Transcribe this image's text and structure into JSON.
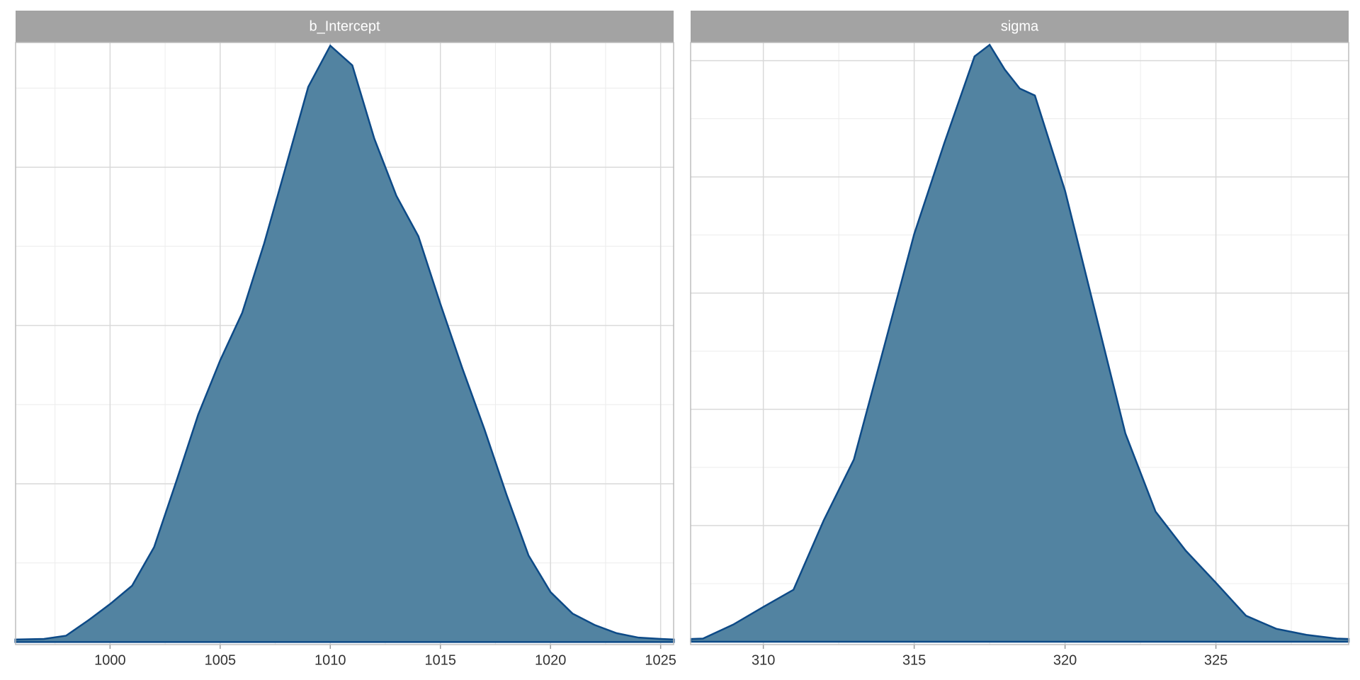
{
  "chart_data": [
    {
      "type": "area",
      "title": "b_Intercept",
      "x": [
        995.7,
        997,
        998,
        999,
        1000,
        1001,
        1002,
        1003,
        1004,
        1005,
        1006,
        1007,
        1008,
        1009,
        1010,
        1011,
        1012,
        1013,
        1014,
        1015,
        1016,
        1017,
        1018,
        1019,
        1020,
        1021,
        1022,
        1023,
        1024,
        1025,
        1025.6
      ],
      "y": [
        0.0004,
        0.0005,
        0.001,
        0.0034,
        0.006,
        0.0089,
        0.015,
        0.0253,
        0.0359,
        0.0445,
        0.052,
        0.063,
        0.0753,
        0.0877,
        0.0942,
        0.0911,
        0.0795,
        0.0705,
        0.0641,
        0.0534,
        0.0432,
        0.0336,
        0.0233,
        0.0137,
        0.0079,
        0.0045,
        0.0027,
        0.0014,
        0.0007,
        0.0005,
        0.0004
      ],
      "xlim": [
        995.71,
        1025.59
      ],
      "xticks": [
        1000,
        1005,
        1010,
        1015,
        1020,
        1025
      ],
      "xminor_ticks": [
        997.5,
        1002.5,
        1007.5,
        1012.5,
        1017.5,
        1022.5
      ],
      "ylim": [
        -0.0004,
        0.0947
      ],
      "yticks": [
        0,
        0.025,
        0.05,
        0.075
      ],
      "yminor_ticks": [
        0.0125,
        0.0375,
        0.0625,
        0.0875
      ],
      "color": "#5283a1",
      "line_color": "#0d4a87",
      "grid": true
    },
    {
      "type": "area",
      "title": "sigma",
      "x": [
        307.6,
        308,
        309,
        310,
        311,
        312,
        313,
        314,
        315,
        316,
        317,
        317.5,
        318,
        318.5,
        319,
        320,
        321,
        322,
        323,
        324,
        325,
        326,
        327,
        328,
        329,
        329.4
      ],
      "y": [
        0.0006,
        0.0007,
        0.0037,
        0.0075,
        0.0112,
        0.0261,
        0.0392,
        0.0634,
        0.0877,
        0.1073,
        0.1259,
        0.1284,
        0.1231,
        0.119,
        0.1175,
        0.097,
        0.0709,
        0.0448,
        0.028,
        0.0196,
        0.0127,
        0.0056,
        0.0028,
        0.0015,
        0.0007,
        0.0006
      ],
      "xlim": [
        307.59,
        329.4
      ],
      "xticks": [
        310,
        315,
        320,
        325
      ],
      "xminor_ticks": [
        312.5,
        317.5,
        322.5,
        327.5
      ],
      "ylim": [
        -0.0006,
        0.1289
      ],
      "yticks": [
        0,
        0.025,
        0.05,
        0.075,
        0.1,
        0.125
      ],
      "yminor_ticks": [
        0.0125,
        0.0375,
        0.0625,
        0.0875,
        0.1125
      ],
      "color": "#5283a1",
      "line_color": "#0d4a87",
      "grid": true
    }
  ]
}
